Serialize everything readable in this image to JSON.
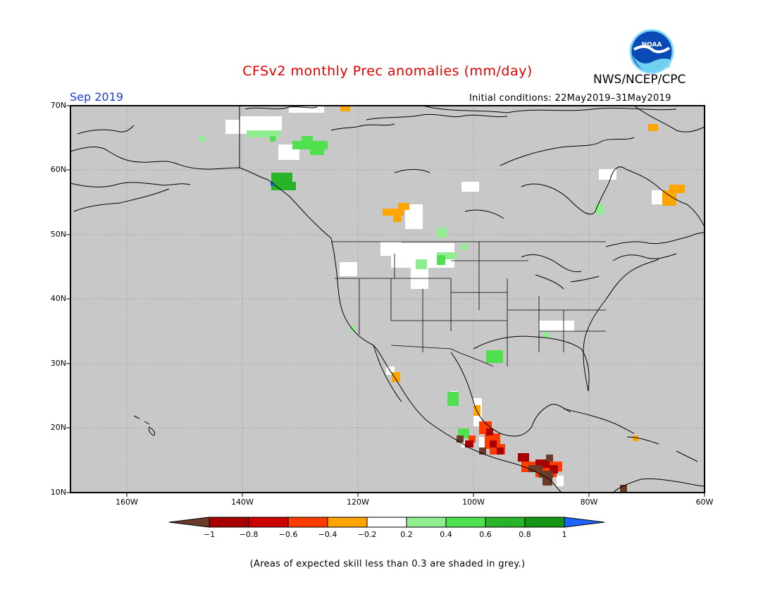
{
  "title": "CFSv2 monthly Prec anomalies (mm/day)",
  "organization": "NWS/NCEP/CPC",
  "logo_text": "NOAA",
  "target_month": "Sep 2019",
  "initial_conditions": "Initial conditions: 22May2019–31May2019",
  "latitude_labels": [
    "70N",
    "60N",
    "50N",
    "40N",
    "30N",
    "20N",
    "10N"
  ],
  "longitude_labels": [
    "160W",
    "140W",
    "120W",
    "100W",
    "80W",
    "60W"
  ],
  "colorbar": {
    "labels": [
      "−1",
      "−0.8",
      "−0.6",
      "−0.4",
      "−0.2",
      "0.2",
      "0.4",
      "0.6",
      "0.8",
      "1"
    ],
    "colors": [
      "#6b3b2a",
      "#a80000",
      "#ff3c00",
      "#ffa500",
      "#ffffff",
      "#90ee90",
      "#50e050",
      "#28b428",
      "#149614",
      "#1e64ff"
    ]
  },
  "colors": {
    "map_background": "#c8c8c8",
    "coastline": "#000000",
    "grid": "#888888",
    "title": "#e00000",
    "month": "#1e3cd2"
  },
  "footnote": "(Areas of expected skill less than 0.3 are shaded in grey.)"
}
